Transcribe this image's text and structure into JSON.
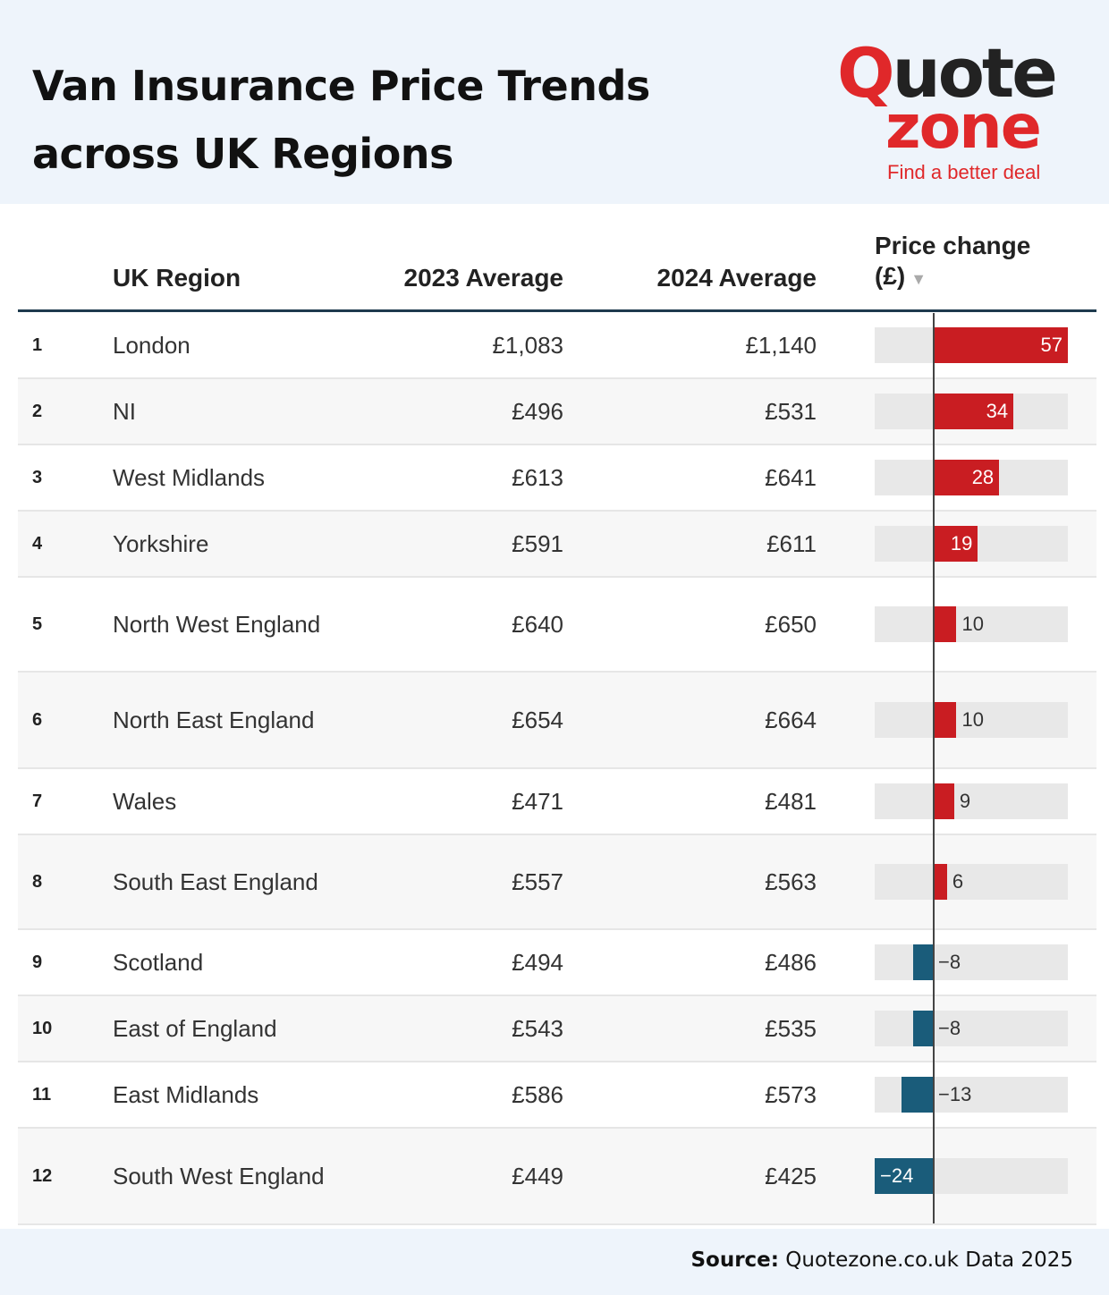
{
  "title_line1": "Van Insurance Price Trends",
  "title_line2": "across UK Regions",
  "logo": {
    "quote": "uote",
    "q": "Q",
    "zone": "zone",
    "tagline": "Find a better deal"
  },
  "chart_data": {
    "type": "table",
    "columns": [
      "UK Region",
      "2023 Average",
      "2024 Average",
      "Price change (£)"
    ],
    "rows": [
      {
        "rank": "1",
        "region": "London",
        "avg2023": "£1,083",
        "avg2024": "£1,140",
        "change": 57,
        "change_label": "57"
      },
      {
        "rank": "2",
        "region": "NI",
        "avg2023": "£496",
        "avg2024": "£531",
        "change": 34,
        "change_label": "34"
      },
      {
        "rank": "3",
        "region": "West Midlands",
        "avg2023": "£613",
        "avg2024": "£641",
        "change": 28,
        "change_label": "28"
      },
      {
        "rank": "4",
        "region": "Yorkshire",
        "avg2023": "£591",
        "avg2024": "£611",
        "change": 19,
        "change_label": "19"
      },
      {
        "rank": "5",
        "region": "North West England",
        "avg2023": "£640",
        "avg2024": "£650",
        "change": 10,
        "change_label": "10"
      },
      {
        "rank": "6",
        "region": "North East England",
        "avg2023": "£654",
        "avg2024": "£664",
        "change": 10,
        "change_label": "10"
      },
      {
        "rank": "7",
        "region": "Wales",
        "avg2023": "£471",
        "avg2024": "£481",
        "change": 9,
        "change_label": "9"
      },
      {
        "rank": "8",
        "region": "South East England",
        "avg2023": "£557",
        "avg2024": "£563",
        "change": 6,
        "change_label": "6"
      },
      {
        "rank": "9",
        "region": "Scotland",
        "avg2023": "£494",
        "avg2024": "£486",
        "change": -8,
        "change_label": "−8"
      },
      {
        "rank": "10",
        "region": "East of England",
        "avg2023": "£543",
        "avg2024": "£535",
        "change": -8,
        "change_label": "−8"
      },
      {
        "rank": "11",
        "region": "East Midlands",
        "avg2023": "£586",
        "avg2024": "£573",
        "change": -13,
        "change_label": "−13"
      },
      {
        "rank": "12",
        "region": "South West England",
        "avg2023": "£449",
        "avg2024": "£425",
        "change": -24,
        "change_label": "−24"
      }
    ],
    "bar_range": [
      -24,
      57
    ],
    "colors": {
      "positive": "#c91d22",
      "negative": "#1a5c7a",
      "bar_bg": "#e8e8e8"
    }
  },
  "table": {
    "header_region": "UK Region",
    "header_2023": "2023 Average",
    "header_2024": "2024 Average",
    "header_change_line1": "Price change",
    "header_change_line2": "(£)",
    "sort_indicator": "▼"
  },
  "footer": {
    "source_label": "Source:",
    "source_text": " Quotezone.co.uk Data 2025"
  }
}
